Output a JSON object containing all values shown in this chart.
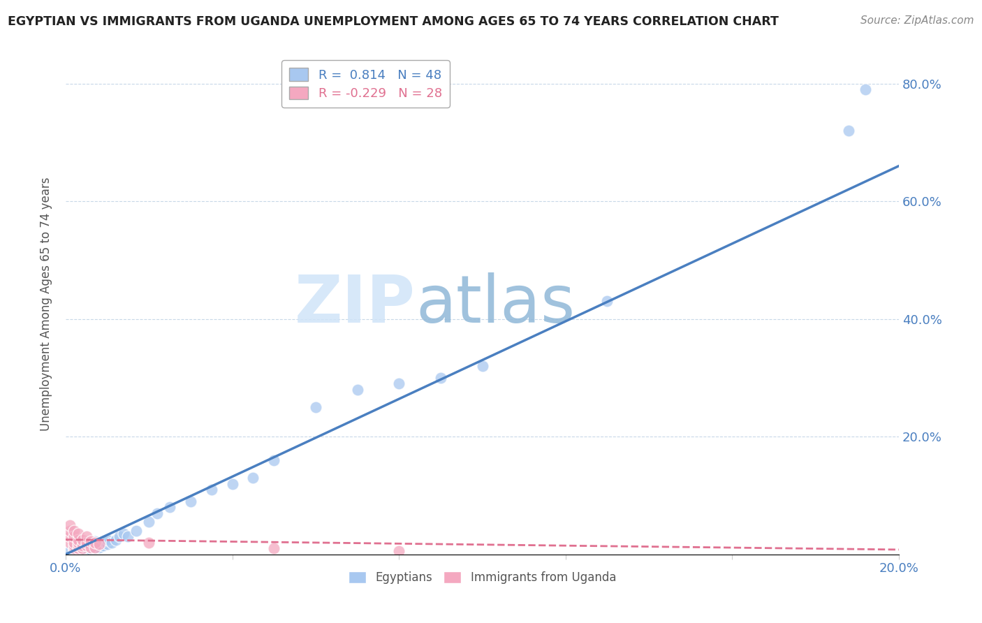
{
  "title": "EGYPTIAN VS IMMIGRANTS FROM UGANDA UNEMPLOYMENT AMONG AGES 65 TO 74 YEARS CORRELATION CHART",
  "source": "Source: ZipAtlas.com",
  "ylabel": "Unemployment Among Ages 65 to 74 years",
  "xlim": [
    0.0,
    0.2
  ],
  "ylim": [
    0.0,
    0.85
  ],
  "x_ticks": [
    0.0,
    0.04,
    0.08,
    0.12,
    0.16,
    0.2
  ],
  "y_ticks": [
    0.0,
    0.2,
    0.4,
    0.6,
    0.8
  ],
  "legend_r_blue": "0.814",
  "legend_n_blue": "48",
  "legend_r_pink": "-0.229",
  "legend_n_pink": "28",
  "watermark_zip": "ZIP",
  "watermark_atlas": "atlas",
  "blue_color": "#a8c8f0",
  "pink_color": "#f4a8c0",
  "line_blue": "#4a7fc0",
  "line_pink": "#e07090",
  "blue_scatter_x": [
    0.001,
    0.002,
    0.002,
    0.003,
    0.003,
    0.003,
    0.004,
    0.004,
    0.004,
    0.004,
    0.005,
    0.005,
    0.005,
    0.005,
    0.006,
    0.006,
    0.006,
    0.007,
    0.007,
    0.007,
    0.008,
    0.008,
    0.009,
    0.009,
    0.01,
    0.01,
    0.011,
    0.012,
    0.013,
    0.014,
    0.015,
    0.017,
    0.02,
    0.022,
    0.025,
    0.03,
    0.035,
    0.04,
    0.045,
    0.05,
    0.06,
    0.07,
    0.08,
    0.09,
    0.1,
    0.13,
    0.188,
    0.192
  ],
  "blue_scatter_y": [
    0.005,
    0.008,
    0.01,
    0.005,
    0.01,
    0.015,
    0.008,
    0.012,
    0.015,
    0.02,
    0.005,
    0.01,
    0.015,
    0.02,
    0.008,
    0.012,
    0.018,
    0.01,
    0.015,
    0.022,
    0.012,
    0.018,
    0.015,
    0.022,
    0.018,
    0.025,
    0.02,
    0.025,
    0.03,
    0.035,
    0.03,
    0.04,
    0.055,
    0.07,
    0.08,
    0.09,
    0.11,
    0.12,
    0.13,
    0.16,
    0.25,
    0.28,
    0.29,
    0.3,
    0.32,
    0.43,
    0.72,
    0.79
  ],
  "pink_scatter_x": [
    0.001,
    0.001,
    0.001,
    0.001,
    0.002,
    0.002,
    0.002,
    0.002,
    0.002,
    0.003,
    0.003,
    0.003,
    0.003,
    0.003,
    0.004,
    0.004,
    0.004,
    0.005,
    0.005,
    0.005,
    0.006,
    0.006,
    0.007,
    0.007,
    0.008,
    0.02,
    0.05,
    0.08
  ],
  "pink_scatter_y": [
    0.02,
    0.03,
    0.04,
    0.05,
    0.01,
    0.015,
    0.02,
    0.03,
    0.04,
    0.01,
    0.015,
    0.02,
    0.025,
    0.035,
    0.01,
    0.015,
    0.025,
    0.015,
    0.02,
    0.03,
    0.012,
    0.022,
    0.012,
    0.02,
    0.018,
    0.02,
    0.01,
    0.005
  ],
  "blue_line_x": [
    0.0,
    0.2
  ],
  "blue_line_y": [
    0.0,
    0.66
  ],
  "pink_line_x": [
    0.0,
    0.2
  ],
  "pink_line_y": [
    0.025,
    0.008
  ]
}
